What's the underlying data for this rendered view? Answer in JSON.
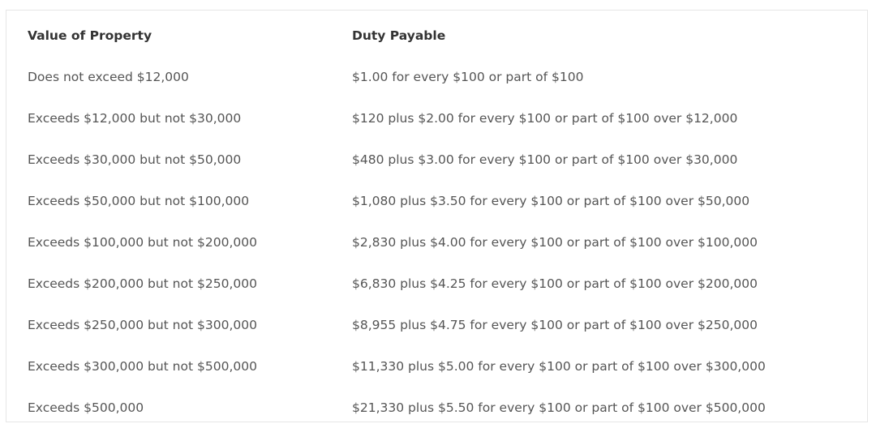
{
  "table": {
    "headers": [
      "Value of Property",
      "Duty Payable"
    ],
    "rows": [
      [
        "Does not exceed $12,000",
        "$1.00 for every $100 or part of $100"
      ],
      [
        "Exceeds $12,000 but not $30,000",
        "$120 plus $2.00 for every $100 or part of $100 over $12,000"
      ],
      [
        "Exceeds $30,000 but not $50,000",
        "$480 plus $3.00 for every $100 or part of $100 over $30,000"
      ],
      [
        "Exceeds $50,000 but not $100,000",
        "$1,080 plus $3.50 for every $100 or part of $100 over $50,000"
      ],
      [
        "Exceeds $100,000 but not $200,000",
        "$2,830 plus $4.00 for every $100 or part of $100 over $100,000"
      ],
      [
        "Exceeds $200,000 but not $250,000",
        "$6,830 plus $4.25 for every $100 or part of $100 over $200,000"
      ],
      [
        "Exceeds $250,000 but not $300,000",
        "$8,955 plus $4.75 for every $100 or part of $100 over $250,000"
      ],
      [
        "Exceeds $300,000 but not $500,000",
        "$11,330 plus $5.00 for every $100 or part of $100 over $300,000"
      ],
      [
        "Exceeds $500,000",
        "$21,330 plus $5.50 for every $100 or part of $100 over $500,000"
      ]
    ]
  }
}
